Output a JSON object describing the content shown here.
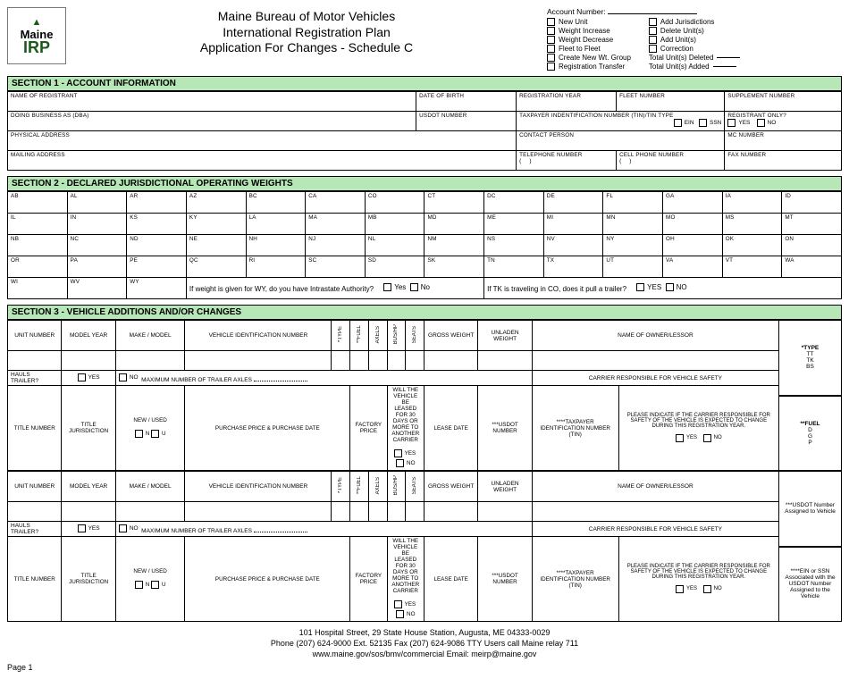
{
  "logo": {
    "line1": "Maine",
    "line2": "IRP"
  },
  "title": {
    "l1": "Maine Bureau of Motor Vehicles",
    "l2": "International Registration Plan",
    "l3": "Application For Changes - Schedule C"
  },
  "opts": {
    "account_label": "Account Number:",
    "left": [
      "New Unit",
      "Weight Increase",
      "Weight Decrease",
      "Fleet to Fleet",
      "Create New Wt. Group",
      "Registration Transfer"
    ],
    "right": [
      "Add Jurisdictions",
      "Delete Unit(s)",
      "Add Unit(s)",
      "Correction"
    ],
    "totals": [
      "Total Unit(s) Deleted",
      "Total Unit(s) Added"
    ]
  },
  "sec1": {
    "hdr": "SECTION 1 - ACCOUNT INFORMATION",
    "r1": [
      "NAME OF REGISTRANT",
      "DATE OF BIRTH",
      "REGISTRATION YEAR",
      "FLEET NUMBER",
      "SUPPLEMENT NUMBER"
    ],
    "r2": {
      "a": "DOING BUSINESS AS (DBA)",
      "b": "USDOT NUMBER",
      "c": "TAXPAYER INDENTIFICATION NUMBER (TIN)/TIN TYPE",
      "ein": "EIN",
      "ssn": "SSN",
      "d": "REGISTRANT ONLY?",
      "yes": "YES",
      "no": "NO"
    },
    "r3": [
      "PHYSICAL ADDRESS",
      "CONTACT PERSON",
      "MC NUMBER"
    ],
    "r4": {
      "a": "MAILING ADDRESS",
      "b": "TELEPHONE NUMBER",
      "c": "CELL PHONE NUMBER",
      "d": "FAX NUMBER",
      "paren_l": "(",
      "paren_r": ")"
    }
  },
  "sec2": {
    "hdr": "SECTION 2 - DECLARED JURISDICTIONAL OPERATING WEIGHTS",
    "rows": [
      [
        "AB",
        "AL",
        "AR",
        "AZ",
        "BC",
        "CA",
        "CO",
        "CT",
        "DC",
        "DE",
        "FL",
        "GA",
        "IA",
        "ID"
      ],
      [
        "IL",
        "IN",
        "KS",
        "KY",
        "LA",
        "MA",
        "MB",
        "MD",
        "ME",
        "MI",
        "MN",
        "MO",
        "MS",
        "MT"
      ],
      [
        "NB",
        "NC",
        "ND",
        "NE",
        "NH",
        "NJ",
        "NL",
        "NM",
        "NS",
        "NV",
        "NY",
        "OH",
        "OK",
        "ON"
      ],
      [
        "OR",
        "PA",
        "PE",
        "QC",
        "RI",
        "SC",
        "SD",
        "SK",
        "TN",
        "TX",
        "UT",
        "VA",
        "VT",
        "WA"
      ],
      [
        "WI",
        "WV",
        "WY",
        "",
        "",
        "",
        "",
        "",
        "",
        "",
        "",
        "",
        "",
        ""
      ]
    ],
    "q1": "If weight is given for WY, do you have Intrastate Authority?",
    "q2": "If TK is traveling in CO, does it pull a trailer?",
    "yes": "Yes",
    "no": "No",
    "YES": "YES",
    "NO": "NO"
  },
  "sec3": {
    "hdr": "SECTION 3 - VEHICLE ADDITIONS AND/OR CHANGES",
    "veh_hdr": [
      "UNIT NUMBER",
      "MODEL YEAR",
      "MAKE / MODEL",
      "VEHICLE IDENTIFICATION NUMBER",
      "*TYPE",
      "**FUEL",
      "AXELS",
      "BUS/HP",
      "SEATS",
      "GROSS WEIGHT",
      "UNLADEN WEIGHT",
      "NAME OF OWNER/LESSOR"
    ],
    "hauls": {
      "a": "HAULS TRAILER?",
      "yes": "YES",
      "no": "NO",
      "max": "MAXIMUM NUMBER OF TRAILER AXLES",
      "carrier": "CARRIER RESPONSIBLE FOR VEHICLE SAFETY"
    },
    "title_row": {
      "a": "TITLE NUMBER",
      "b": "TITLE JURISDICTION",
      "c": "NEW / USED",
      "n": "N",
      "u": "U",
      "d": "PURCHASE PRICE & PURCHASE DATE",
      "e": "FACTORY PRICE",
      "f": "WILL THE VEHICLE BE LEASED FOR 30 DAYS OR MORE TO ANOTHER CARRIER",
      "yes": "YES",
      "no": "NO",
      "g": "LEASE DATE",
      "h": "***USDOT NUMBER",
      "i": "****TAXPAYER IDENTIFICATION NUMBER (TIN)",
      "j": "PLEASE INDICATE IF THE CARRIER RESPONSIBLE FOR SAFETY OF THE VEHICLE IS EXPECTED TO CHANGE DURING THIS REGISTRATION YEAR."
    },
    "side": [
      {
        "t": "*TYPE",
        "lines": [
          "TT",
          "TK",
          "BS"
        ]
      },
      {
        "t": "**FUEL",
        "lines": [
          "D",
          "G",
          "P"
        ]
      },
      {
        "t": "***USDOT Number Assigned to Vehicle",
        "lines": []
      },
      {
        "t": "****EIN or SSN Associated with the USDOT Number Assigned to the Vehicle",
        "lines": []
      }
    ]
  },
  "footer": {
    "l1": "101 Hospital Street, 29 State House Station, Augusta, ME 04333-0029",
    "l2": "Phone (207) 624-9000 Ext. 52135   Fax (207) 624-9086  TTY Users call Maine relay 711",
    "l3": "www.maine.gov/sos/bmv/commercial   Email: meirp@maine.gov",
    "page": "Page 1"
  },
  "colors": {
    "section_bg": "#b7e6b7"
  }
}
